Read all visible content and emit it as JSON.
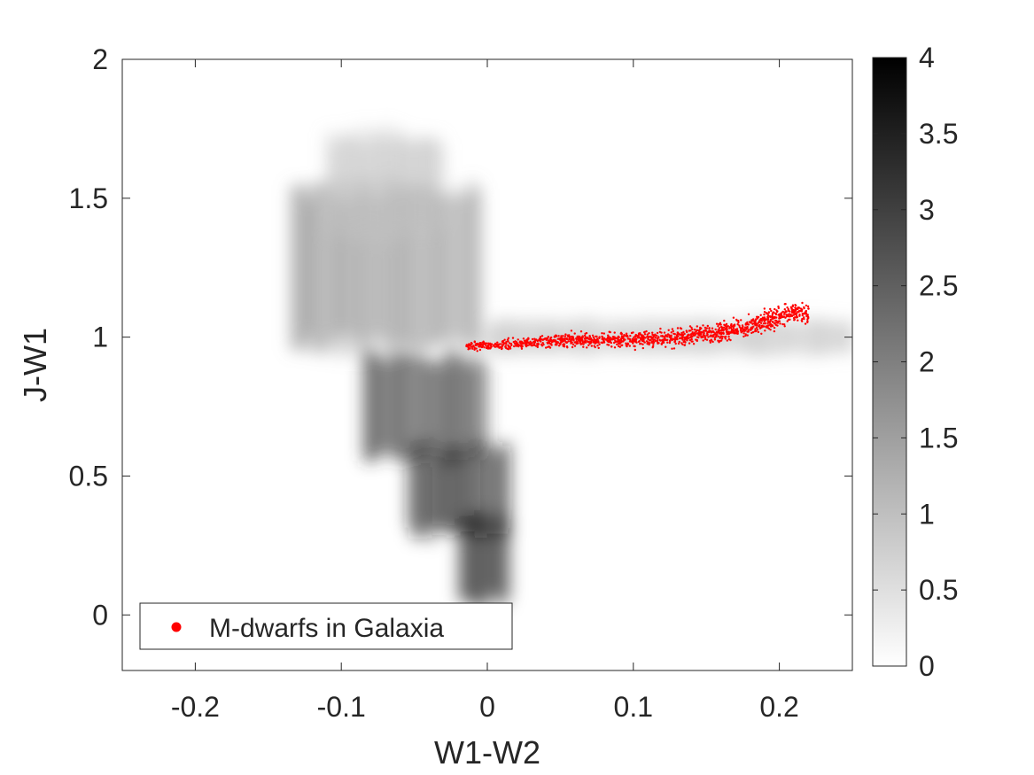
{
  "chart_data": {
    "type": "heatmap",
    "title": "",
    "xlabel": "W1-W2",
    "ylabel": "J-W1",
    "xlim": [
      -0.25,
      0.25
    ],
    "ylim": [
      -0.2,
      2
    ],
    "xticks": [
      "-0.2",
      "-0.1",
      "0",
      "0.1",
      "0.2"
    ],
    "yticks": [
      "0",
      "0.5",
      "1",
      "1.5",
      "2"
    ],
    "grid": false,
    "colorbar": {
      "range": [
        0,
        4
      ],
      "ticks": [
        "0",
        "0.5",
        "1",
        "1.5",
        "2",
        "2.5",
        "3",
        "3.5",
        "4"
      ],
      "colormap": "gray (white = 0, black = 4)"
    },
    "density_regions": [
      {
        "x": [
          -0.135,
          -0.005
        ],
        "y_center": 1.25,
        "y_spread": 0.28,
        "level": 1.8
      },
      {
        "x": [
          -0.11,
          -0.03
        ],
        "y_center": 1.55,
        "y_spread": 0.18,
        "level": 1.0
      },
      {
        "x": [
          -0.085,
          0.0
        ],
        "y_center": 0.75,
        "y_spread": 0.18,
        "level": 3.2
      },
      {
        "x": [
          -0.055,
          0.015
        ],
        "y_center": 0.45,
        "y_spread": 0.16,
        "level": 3.6
      },
      {
        "x": [
          -0.02,
          0.015
        ],
        "y_center": 0.2,
        "y_spread": 0.15,
        "level": 3.9
      },
      {
        "x": [
          0.0,
          0.25
        ],
        "y_center": 1.0,
        "y_spread": 0.06,
        "level": 1.0
      }
    ],
    "series": [
      {
        "name": "M-dwarfs in Galaxia",
        "type": "scatter",
        "color": "#ff0000",
        "trend": {
          "x": [
            -0.015,
            0.0,
            0.03,
            0.06,
            0.09,
            0.12,
            0.15,
            0.18,
            0.21
          ],
          "y": [
            0.97,
            0.97,
            0.98,
            0.99,
            0.99,
            0.995,
            1.01,
            1.04,
            1.09
          ]
        },
        "x_range": [
          -0.015,
          0.22
        ],
        "y_scatter": 0.04
      }
    ],
    "legend": {
      "placement": "bottom-left",
      "entries": [
        "M-dwarfs in Galaxia"
      ]
    }
  }
}
